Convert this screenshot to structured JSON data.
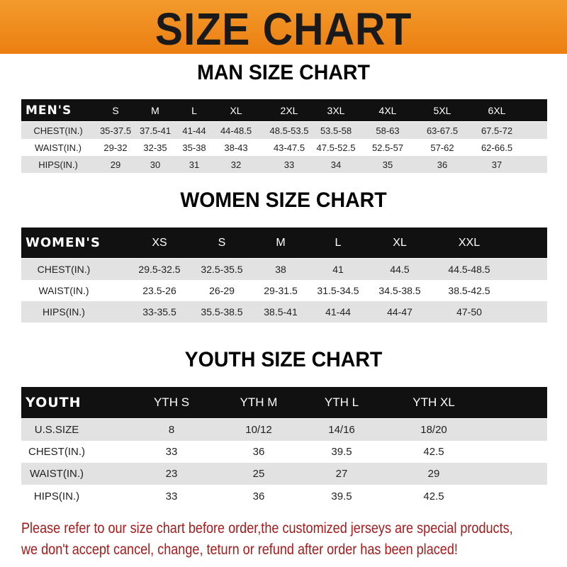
{
  "title": "SIZE CHART",
  "colors": {
    "banner": "#ec7f12",
    "header_row": "#111111",
    "stripe": "#e2e2e2",
    "note": "#a51b1b"
  },
  "men": {
    "title": "MAN SIZE CHART",
    "header": [
      "MEN'S",
      "S",
      "M",
      "L",
      "XL",
      "2XL",
      "3XL",
      "4XL",
      "5XL",
      "6XL"
    ],
    "rows": [
      [
        "CHEST(IN.)",
        "35-37.5",
        "37.5-41",
        "41-44",
        "44-48.5",
        "48.5-53.5",
        "53.5-58",
        "58-63",
        "63-67.5",
        "67.5-72"
      ],
      [
        "WAIST(IN.)",
        "29-32",
        "32-35",
        "35-38",
        "38-43",
        "43-47.5",
        "47.5-52.5",
        "52.5-57",
        "57-62",
        "62-66.5"
      ],
      [
        "HIPS(IN.)",
        "29",
        "30",
        "31",
        "32",
        "33",
        "34",
        "35",
        "36",
        "37"
      ]
    ]
  },
  "women": {
    "title": "WOMEN SIZE CHART",
    "header": [
      "WOMEN'S",
      "XS",
      "S",
      "M",
      "L",
      "XL",
      "XXL"
    ],
    "rows": [
      [
        "CHEST(IN.)",
        "29.5-32.5",
        "32.5-35.5",
        "38",
        "41",
        "44.5",
        "44.5-48.5"
      ],
      [
        "WAIST(IN.)",
        "23.5-26",
        "26-29",
        "29-31.5",
        "31.5-34.5",
        "34.5-38.5",
        "38.5-42.5"
      ],
      [
        "HIPS(IN.)",
        "33-35.5",
        "35.5-38.5",
        "38.5-41",
        "41-44",
        "44-47",
        "47-50"
      ]
    ]
  },
  "youth": {
    "title": "YOUTH SIZE CHART",
    "header": [
      "YOUTH",
      "YTH S",
      "YTH M",
      "YTH L",
      "YTH XL"
    ],
    "rows": [
      [
        "U.S.SIZE",
        "8",
        "10/12",
        "14/16",
        "18/20"
      ],
      [
        "CHEST(IN.)",
        "33",
        "36",
        "39.5",
        "42.5"
      ],
      [
        "WAIST(IN.)",
        "23",
        "25",
        "27",
        "29"
      ],
      [
        "HIPS(IN.)",
        "33",
        "36",
        "39.5",
        "42.5"
      ]
    ]
  },
  "note": [
    "Please refer to our size chart before order,the customized jerseys are special products,",
    "we don't accept cancel, change, teturn or refund after order has been placed!"
  ]
}
